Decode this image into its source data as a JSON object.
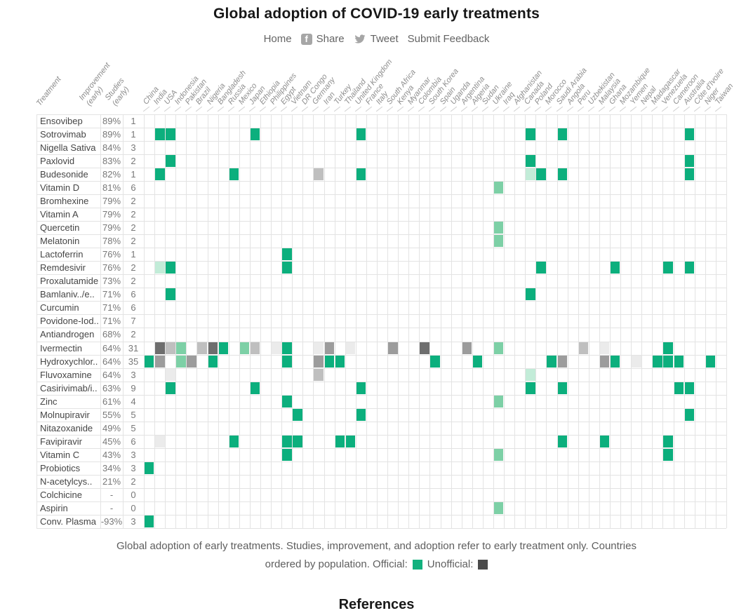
{
  "title": "Global adoption of COVID-19 early treatments",
  "nav": {
    "home": "Home",
    "share": "Share",
    "tweet": "Tweet",
    "feedback": "Submit Feedback"
  },
  "caption": {
    "line1": "Global adoption of early treatments. Studies, improvement, and adoption refer to early treatment only. Countries",
    "line2_prefix": "ordered by population. Official:",
    "line2_unofficial": "Unofficial:"
  },
  "footer": {
    "heading": "References"
  },
  "chart_data": {
    "type": "heatmap",
    "title": "Global adoption of COVID-19 early treatments",
    "row_header": "Treatment",
    "value_headers": {
      "improvement": "Improvement (early)",
      "studies": "Studies (early)"
    },
    "legend": {
      "official_label": "Official:",
      "unofficial_label": "Unofficial:"
    },
    "colors": {
      "g": "#0caf7d",
      "mg": "#7dd0a6",
      "lg": "#c2ecd8",
      "d1": "#6e6e6e",
      "d2": "#9c9c9c",
      "d3": "#bfbfbf",
      "d4": "#ebebeb",
      "legend_official": "#12b17e",
      "legend_unofficial": "#4b4b4b",
      "gridline": "#e3e3e3"
    },
    "color_meaning": {
      "g": "official",
      "mg": "official-partial",
      "lg": "official-light",
      "d1": "unofficial-dark",
      "d2": "unofficial-medium",
      "d3": "unofficial-light",
      "d4": "unofficial-faint"
    },
    "countries": [
      "China",
      "India",
      "USA",
      "Indonesia",
      "Pakistan",
      "Brazil",
      "Nigeria",
      "Bangladesh",
      "Russia",
      "Mexico",
      "Japan",
      "Ethiopia",
      "Philippines",
      "Egypt",
      "Vietnam",
      "DR Congo",
      "Germany",
      "Iran",
      "Turkey",
      "Thailand",
      "United Kingdom",
      "France",
      "Italy",
      "South Africa",
      "Kenya",
      "Myanmar",
      "Colombia",
      "South Korea",
      "Spain",
      "Uganda",
      "Argentina",
      "Algeria",
      "Sudan",
      "Ukraine",
      "Iraq",
      "Afghanistan",
      "Canada",
      "Poland",
      "Morocco",
      "Saudi Arabia",
      "Angola",
      "Peru",
      "Uzbekistan",
      "Malaysia",
      "Ghana",
      "Mozambique",
      "Yemen",
      "Nepal",
      "Madagascar",
      "Venezuela",
      "Cameroon",
      "Australia",
      "Côte d'Ivoire",
      "Niger",
      "Taiwan"
    ],
    "treatments": [
      {
        "name": "Ensovibep",
        "improvement": "89%",
        "studies": "1",
        "cells": {}
      },
      {
        "name": "Sotrovimab",
        "improvement": "89%",
        "studies": "1",
        "cells": {
          "India": "g",
          "USA": "g",
          "Japan": "g",
          "United Kingdom": "g",
          "Canada": "g",
          "Saudi Arabia": "g",
          "Australia": "g"
        }
      },
      {
        "name": "Nigella Sativa",
        "improvement": "84%",
        "studies": "3",
        "cells": {}
      },
      {
        "name": "Paxlovid",
        "improvement": "83%",
        "studies": "2",
        "cells": {
          "USA": "g",
          "Canada": "g",
          "Australia": "g"
        }
      },
      {
        "name": "Budesonide",
        "improvement": "82%",
        "studies": "1",
        "cells": {
          "India": "g",
          "Russia": "g",
          "Germany": "d3",
          "United Kingdom": "g",
          "Canada": "lg",
          "Poland": "g",
          "Saudi Arabia": "g",
          "Australia": "g"
        }
      },
      {
        "name": "Vitamin D",
        "improvement": "81%",
        "studies": "6",
        "cells": {
          "Ukraine": "mg"
        }
      },
      {
        "name": "Bromhexine",
        "improvement": "79%",
        "studies": "2",
        "cells": {}
      },
      {
        "name": "Vitamin A",
        "improvement": "79%",
        "studies": "2",
        "cells": {}
      },
      {
        "name": "Quercetin",
        "improvement": "79%",
        "studies": "2",
        "cells": {
          "Ukraine": "mg"
        }
      },
      {
        "name": "Melatonin",
        "improvement": "78%",
        "studies": "2",
        "cells": {
          "Ukraine": "mg"
        }
      },
      {
        "name": "Lactoferrin",
        "improvement": "76%",
        "studies": "1",
        "cells": {
          "Egypt": "g"
        }
      },
      {
        "name": "Remdesivir",
        "improvement": "76%",
        "studies": "2",
        "cells": {
          "India": "lg",
          "USA": "g",
          "Egypt": "g",
          "Poland": "g",
          "Ghana": "g",
          "Venezuela": "g",
          "Australia": "g"
        }
      },
      {
        "name": "Proxalutamide",
        "improvement": "73%",
        "studies": "2",
        "cells": {}
      },
      {
        "name": "Bamlaniv../e..",
        "improvement": "71%",
        "studies": "6",
        "cells": {
          "USA": "g",
          "Canada": "g"
        }
      },
      {
        "name": "Curcumin",
        "improvement": "71%",
        "studies": "6",
        "cells": {}
      },
      {
        "name": "Povidone-Iod..",
        "improvement": "71%",
        "studies": "7",
        "cells": {}
      },
      {
        "name": "Antiandrogen",
        "improvement": "68%",
        "studies": "2",
        "cells": {}
      },
      {
        "name": "Ivermectin",
        "improvement": "64%",
        "studies": "31",
        "cells": {
          "India": "d1",
          "USA": "d3",
          "Indonesia": "mg",
          "Brazil": "d3",
          "Nigeria": "d1",
          "Bangladesh": "g",
          "Mexico": "mg",
          "Japan": "d3",
          "Philippines": "d4",
          "Egypt": "g",
          "Germany": "d4",
          "Iran": "d2",
          "Thailand": "d4",
          "South Africa": "d2",
          "Colombia": "d1",
          "Argentina": "d2",
          "Ukraine": "mg",
          "Peru": "d3",
          "Malaysia": "d4",
          "Venezuela": "g"
        }
      },
      {
        "name": "Hydroxychlor..",
        "improvement": "64%",
        "studies": "35",
        "cells": {
          "China": "g",
          "India": "d2",
          "Indonesia": "mg",
          "Pakistan": "d2",
          "Nigeria": "g",
          "Egypt": "g",
          "Germany": "d2",
          "Iran": "g",
          "Turkey": "g",
          "South Korea": "g",
          "Algeria": "g",
          "Morocco": "g",
          "Saudi Arabia": "d2",
          "Malaysia": "d2",
          "Ghana": "g",
          "Yemen": "d4",
          "Madagascar": "g",
          "Venezuela": "g",
          "Cameroon": "g",
          "Niger": "g"
        }
      },
      {
        "name": "Fluvoxamine",
        "improvement": "64%",
        "studies": "3",
        "cells": {
          "USA": "d4",
          "Germany": "d3",
          "Canada": "lg"
        }
      },
      {
        "name": "Casirivimab/i..",
        "improvement": "63%",
        "studies": "9",
        "cells": {
          "USA": "g",
          "Japan": "g",
          "United Kingdom": "g",
          "Canada": "g",
          "Saudi Arabia": "g",
          "Cameroon": "g",
          "Australia": "g"
        }
      },
      {
        "name": "Zinc",
        "improvement": "61%",
        "studies": "4",
        "cells": {
          "Egypt": "g",
          "Ukraine": "mg"
        }
      },
      {
        "name": "Molnupiravir",
        "improvement": "55%",
        "studies": "5",
        "cells": {
          "Vietnam": "g",
          "United Kingdom": "g",
          "Australia": "g"
        }
      },
      {
        "name": "Nitazoxanide",
        "improvement": "49%",
        "studies": "5",
        "cells": {}
      },
      {
        "name": "Favipiravir",
        "improvement": "45%",
        "studies": "6",
        "cells": {
          "India": "d4",
          "Russia": "g",
          "Egypt": "g",
          "Vietnam": "g",
          "Turkey": "g",
          "Thailand": "g",
          "Saudi Arabia": "g",
          "Malaysia": "g",
          "Venezuela": "g"
        }
      },
      {
        "name": "Vitamin C",
        "improvement": "43%",
        "studies": "3",
        "cells": {
          "Egypt": "g",
          "Ukraine": "mg",
          "Venezuela": "g"
        }
      },
      {
        "name": "Probiotics",
        "improvement": "34%",
        "studies": "3",
        "cells": {
          "China": "g"
        }
      },
      {
        "name": "N-acetylcys..",
        "improvement": "21%",
        "studies": "2",
        "cells": {}
      },
      {
        "name": "Colchicine",
        "improvement": "-",
        "studies": "0",
        "cells": {}
      },
      {
        "name": "Aspirin",
        "improvement": "-",
        "studies": "0",
        "cells": {
          "Ukraine": "mg"
        }
      },
      {
        "name": "Conv. Plasma",
        "improvement": "-93%",
        "studies": "3",
        "cells": {
          "China": "g"
        }
      }
    ]
  }
}
